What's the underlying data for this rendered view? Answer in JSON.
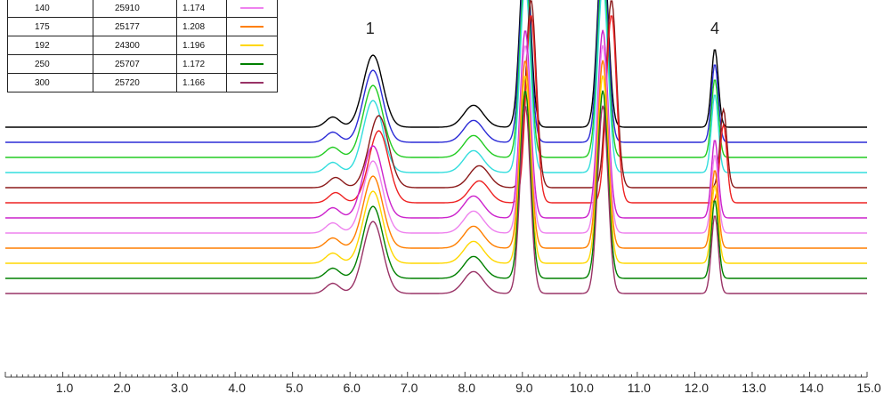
{
  "chart_data": {
    "type": "line",
    "title": "",
    "xlabel": "",
    "ylabel": "",
    "xlim": [
      0,
      15
    ],
    "x_ticks": [
      "1.0",
      "2.0",
      "3.0",
      "4.0",
      "5.0",
      "6.0",
      "7.0",
      "8.0",
      "9.0",
      "10.0",
      "11.0",
      "12.0",
      "13.0",
      "14.0",
      "15.0"
    ],
    "peak_labels": [
      {
        "text": "1",
        "x": 6.35
      },
      {
        "text": "4",
        "x": 12.35
      }
    ],
    "legend_rows": [
      {
        "c1": "140",
        "c2": "25910",
        "c3": "1.174",
        "color": "#ee82ee"
      },
      {
        "c1": "175",
        "c2": "25177",
        "c3": "1.208",
        "color": "#ff7f00"
      },
      {
        "c1": "192",
        "c2": "24300",
        "c3": "1.196",
        "color": "#ffd700"
      },
      {
        "c1": "250",
        "c2": "25707",
        "c3": "1.172",
        "color": "#008000"
      },
      {
        "c1": "300",
        "c2": "25720",
        "c3": "1.166",
        "color": "#993366"
      }
    ],
    "series": [
      {
        "color": "#000000",
        "peaks": [
          [
            5.7,
            0.13
          ],
          [
            6.4,
            0.92
          ],
          [
            8.15,
            0.28
          ],
          [
            9.05,
            2.4
          ],
          [
            10.4,
            2.4
          ],
          [
            12.35,
            1.0
          ]
        ]
      },
      {
        "color": "#2b2bd6",
        "peaks": [
          [
            5.7,
            0.13
          ],
          [
            6.4,
            0.92
          ],
          [
            8.15,
            0.28
          ],
          [
            9.05,
            2.4
          ],
          [
            10.4,
            2.4
          ],
          [
            12.35,
            1.0
          ]
        ]
      },
      {
        "color": "#22cc22",
        "peaks": [
          [
            5.7,
            0.13
          ],
          [
            6.4,
            0.92
          ],
          [
            8.15,
            0.28
          ],
          [
            9.05,
            2.4
          ],
          [
            10.4,
            2.4
          ],
          [
            12.35,
            1.0
          ]
        ]
      },
      {
        "color": "#33dddd",
        "peaks": [
          [
            5.7,
            0.13
          ],
          [
            6.4,
            0.92
          ],
          [
            8.15,
            0.28
          ],
          [
            9.05,
            2.4
          ],
          [
            10.4,
            2.4
          ],
          [
            12.35,
            1.0
          ]
        ]
      },
      {
        "color": "#8b1a1a",
        "peaks": [
          [
            5.75,
            0.13
          ],
          [
            6.5,
            0.92
          ],
          [
            8.25,
            0.28
          ],
          [
            9.15,
            2.4
          ],
          [
            10.55,
            2.4
          ],
          [
            12.5,
            1.0
          ]
        ]
      },
      {
        "color": "#ee2222",
        "peaks": [
          [
            5.75,
            0.13
          ],
          [
            6.5,
            0.92
          ],
          [
            8.25,
            0.28
          ],
          [
            9.15,
            2.4
          ],
          [
            10.55,
            2.4
          ],
          [
            12.5,
            1.0
          ]
        ]
      },
      {
        "color": "#cc22cc",
        "peaks": [
          [
            5.7,
            0.13
          ],
          [
            6.4,
            0.92
          ],
          [
            8.15,
            0.28
          ],
          [
            9.05,
            2.4
          ],
          [
            10.4,
            2.4
          ],
          [
            12.35,
            1.0
          ]
        ]
      },
      {
        "color": "#ee82ee",
        "peaks": [
          [
            5.7,
            0.13
          ],
          [
            6.4,
            0.92
          ],
          [
            8.15,
            0.28
          ],
          [
            9.05,
            2.4
          ],
          [
            10.4,
            2.4
          ],
          [
            12.35,
            1.0
          ]
        ]
      },
      {
        "color": "#ff7f00",
        "peaks": [
          [
            5.7,
            0.13
          ],
          [
            6.4,
            0.92
          ],
          [
            8.15,
            0.28
          ],
          [
            9.05,
            2.4
          ],
          [
            10.4,
            2.4
          ],
          [
            12.35,
            1.0
          ]
        ]
      },
      {
        "color": "#ffd700",
        "peaks": [
          [
            5.7,
            0.13
          ],
          [
            6.4,
            0.92
          ],
          [
            8.15,
            0.28
          ],
          [
            9.05,
            2.4
          ],
          [
            10.4,
            2.4
          ],
          [
            12.35,
            1.0
          ]
        ]
      },
      {
        "color": "#008000",
        "peaks": [
          [
            5.7,
            0.13
          ],
          [
            6.4,
            0.92
          ],
          [
            8.15,
            0.28
          ],
          [
            9.05,
            2.4
          ],
          [
            10.4,
            2.4
          ],
          [
            12.35,
            1.0
          ]
        ]
      },
      {
        "color": "#993366",
        "peaks": [
          [
            5.7,
            0.13
          ],
          [
            6.4,
            0.92
          ],
          [
            8.15,
            0.28
          ],
          [
            9.05,
            2.4
          ],
          [
            10.4,
            2.4
          ],
          [
            12.35,
            1.0
          ]
        ]
      }
    ]
  }
}
